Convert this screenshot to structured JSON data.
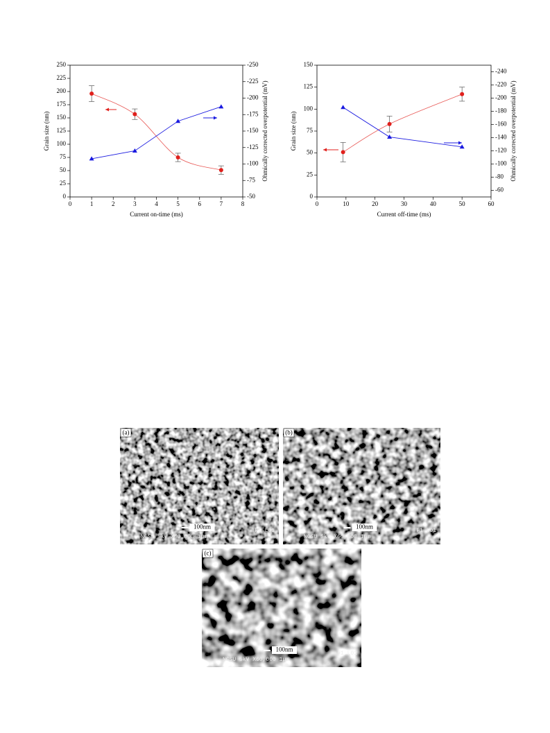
{
  "chart_data": [
    {
      "type": "line",
      "x_label": "Current on-time (ms)",
      "y_label": "Grain size (nm)",
      "y2_label": "Ohmically corrected overpotential (mV)",
      "xlim": [
        0,
        8
      ],
      "xticks": [
        0,
        1,
        2,
        3,
        4,
        5,
        6,
        7,
        8
      ],
      "ylim": [
        0,
        250
      ],
      "yticks": [
        0,
        25,
        50,
        75,
        100,
        125,
        150,
        175,
        200,
        225,
        250
      ],
      "y2lim": [
        -50,
        -250
      ],
      "y2ticks": [
        -50,
        -75,
        -100,
        -125,
        -150,
        -175,
        -200,
        -225,
        -250
      ],
      "series": [
        {
          "color": "#e0201c",
          "marker": "circle",
          "curve": "smooth",
          "x": [
            1,
            3,
            5,
            7
          ],
          "values": [
            196,
            157,
            75,
            51
          ],
          "errors": [
            15,
            10,
            8,
            8
          ]
        },
        {
          "color": "#1a1ae0",
          "marker": "triangle",
          "axis": "y2",
          "x": [
            1,
            3,
            5,
            7
          ],
          "values": [
            -108,
            -120,
            -165,
            -187
          ]
        }
      ]
    },
    {
      "type": "line",
      "x_label": "Current off-time (ms)",
      "y_label": "Grain size (nm)",
      "y2_label": "Ohmically corrected overpotential (mV)",
      "xlim": [
        0,
        60
      ],
      "xticks": [
        0,
        10,
        20,
        30,
        40,
        50,
        60
      ],
      "ylim": [
        0,
        150
      ],
      "yticks": [
        0,
        25,
        50,
        75,
        100,
        125,
        150
      ],
      "y2lim": [
        -50,
        -250
      ],
      "y2ticks": [
        -60,
        -80,
        -100,
        -120,
        -140,
        -160,
        -180,
        -200,
        -220,
        -240
      ],
      "series": [
        {
          "color": "#e0201c",
          "marker": "circle",
          "curve": "smooth",
          "x": [
            9,
            25,
            50
          ],
          "values": [
            51,
            83,
            117
          ],
          "errors": [
            11,
            9,
            8
          ]
        },
        {
          "color": "#1a1ae0",
          "marker": "triangle",
          "axis": "y2",
          "x": [
            9,
            25,
            50
          ],
          "values": [
            -186,
            -141,
            -126
          ]
        }
      ]
    }
  ],
  "figures": [
    {
      "label": "(a)",
      "scale_bar": "100nm",
      "info": "NCSU 5kV X60,000 1µm",
      "info_right": "F1 L01"
    },
    {
      "label": "(b)",
      "scale_bar": "100nm",
      "info": "NCSU 5kV X60,000 1µm",
      "info_right": "F1 L01"
    },
    {
      "label": "(c)",
      "scale_bar": "100nm",
      "info": "NCSU 5kV X60,000 1µm",
      "info_right": "F1 L01"
    }
  ]
}
